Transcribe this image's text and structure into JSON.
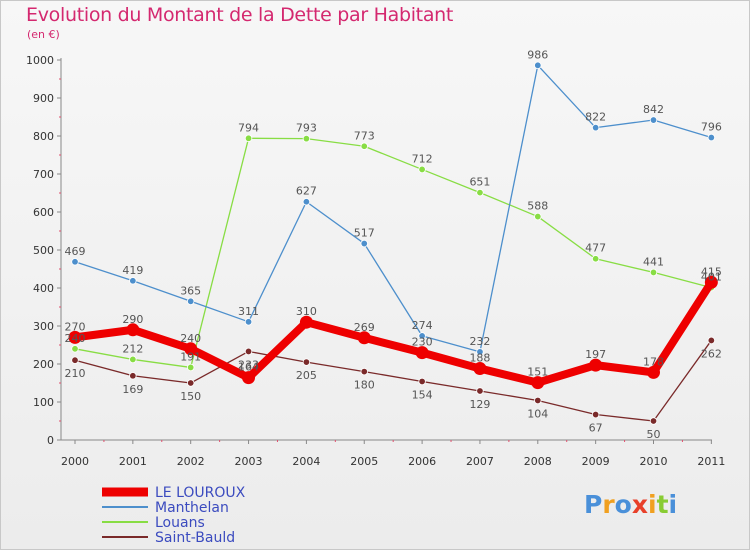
{
  "title": "Evolution du Montant de la Dette par Habitant",
  "unit": "(en €)",
  "logo_text": "Proxiti",
  "chart_data": {
    "type": "line",
    "title": "Evolution du Montant de la Dette par Habitant",
    "subtitle": "(en €)",
    "xlabel": "",
    "ylabel": "",
    "x": [
      "2000",
      "2001",
      "2002",
      "2003",
      "2004",
      "2005",
      "2006",
      "2007",
      "2008",
      "2009",
      "2010",
      "2011"
    ],
    "ylim": [
      0,
      1000
    ],
    "yticks": [
      0,
      100,
      200,
      300,
      400,
      500,
      600,
      700,
      800,
      900,
      1000
    ],
    "grid": false,
    "legend_position": "bottom-left",
    "series": [
      {
        "name": "LE LOUROUX",
        "color": "#ee0000",
        "values": [
          270,
          290,
          240,
          164,
          310,
          269,
          230,
          188,
          151,
          197,
          178,
          415
        ]
      },
      {
        "name": "Manthelan",
        "color": "#4d8fcc",
        "values": [
          469,
          419,
          365,
          311,
          627,
          517,
          274,
          232,
          986,
          822,
          842,
          796
        ]
      },
      {
        "name": "Louans",
        "color": "#88dd44",
        "values": [
          240,
          212,
          191,
          794,
          793,
          773,
          712,
          651,
          588,
          477,
          441,
          401
        ]
      },
      {
        "name": "Saint-Bauld",
        "color": "#7a2a2a",
        "values": [
          210,
          169,
          150,
          233,
          205,
          180,
          154,
          129,
          104,
          67,
          50,
          262
        ]
      }
    ]
  }
}
